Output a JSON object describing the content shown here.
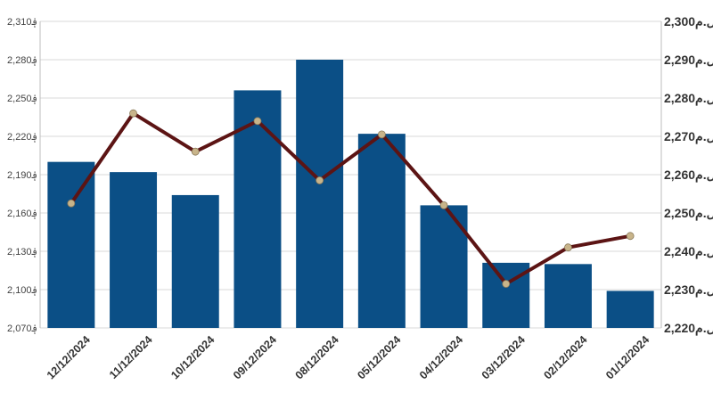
{
  "chart_data": {
    "type": "bar+line",
    "categories": [
      "12/12/2024",
      "11/12/2024",
      "10/12/2024",
      "09/12/2024",
      "08/12/2024",
      "05/12/2024",
      "04/12/2024",
      "03/12/2024",
      "02/12/2024",
      "01/12/2024"
    ],
    "series": [
      {
        "axis": "left",
        "type": "bar",
        "values": [
          2200,
          2192,
          2174,
          2256,
          2280,
          2222,
          2166,
          2121,
          2120,
          2099
        ]
      },
      {
        "axis": "right",
        "type": "line",
        "values": [
          2252.5,
          2276,
          2266,
          2274,
          2258.5,
          2270.5,
          2252,
          2231.5,
          2241,
          2244
        ]
      }
    ],
    "left_axis": {
      "ylim": [
        2070,
        2310
      ],
      "ticks": [
        2070,
        2100,
        2130,
        2160,
        2190,
        2220,
        2250,
        2280,
        2310
      ],
      "tick_labels": [
        "2,070؋",
        "2,100؋",
        "2,130؋",
        "2,160؋",
        "2,190؋",
        "2,220؋",
        "2,250؋",
        "2,280؋",
        "2,310؋"
      ]
    },
    "right_axis": {
      "ylim": [
        2220,
        2300
      ],
      "ticks": [
        2220,
        2230,
        2240,
        2250,
        2260,
        2270,
        2280,
        2290,
        2300
      ],
      "tick_labels": [
        "2,220ل.م",
        "2,230ل.م",
        "2,240ل.م",
        "2,250ل.م",
        "2,260ل.م",
        "2,270ل.م",
        "2,280ل.م",
        "2,290ل.م",
        "2,300ل.م"
      ]
    },
    "grid": true,
    "colors": {
      "bar": "#0b4f86",
      "line": "#5c1414",
      "marker": "#c8b48a",
      "grid": "#d9d9d9"
    }
  }
}
